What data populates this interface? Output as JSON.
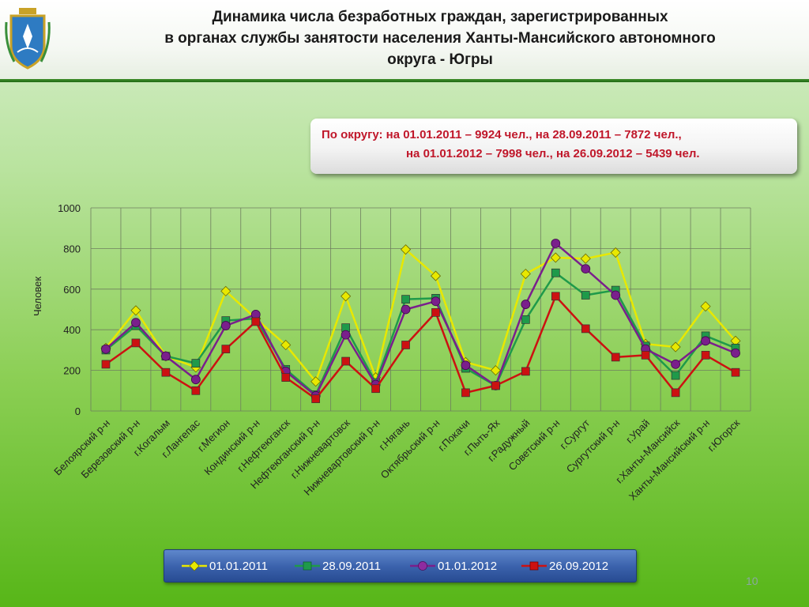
{
  "header": {
    "title_lines": [
      "Динамика числа безработных граждан, зарегистрированных",
      "в органах службы занятости населения Ханты-Мансийского автономного",
      "округа - Югры"
    ],
    "emblem_icon": "coat-of-arms-icon"
  },
  "infobox": {
    "line1": "По округу:    на 01.01.2011 – 9924 чел., на 28.09.2011 – 7872 чел.,",
    "line2": "на 01.01.2012 – 7998 чел., на 26.09.2012 – 5439 чел."
  },
  "page_number": "10",
  "chart_data": {
    "type": "line",
    "ylabel": "Человек",
    "ylim": [
      0,
      1000
    ],
    "yticks": [
      "0",
      "200",
      "400",
      "600",
      "800",
      "1000"
    ],
    "grid": true,
    "legend_position": "bottom",
    "categories": [
      "Белоярский р-н",
      "Березовский р-н",
      "г.Когалым",
      "г.Лангепас",
      "г.Мегион",
      "Кондинский р-н",
      "г.Нефтеюганск",
      "Нефтеюганский р-н",
      "г.Нижневартовск",
      "Нижневартовский р-н",
      "г.Нягань",
      "Октябрьский р-н",
      "г.Покачи",
      "г.Пыть-Ях",
      "г.Радужный",
      "Советский р-н",
      "г.Сургут",
      "Сургутский р-н",
      "г.Урай",
      "г.Ханты-Мансийск",
      "Ханты-Мансийский р-н",
      "г.Югорск"
    ],
    "series": [
      {
        "name": "01.01.2011",
        "color": "#e8e800",
        "marker": "diamond",
        "values": [
          310,
          495,
          270,
          215,
          590,
          455,
          325,
          145,
          565,
          165,
          795,
          665,
          240,
          200,
          675,
          755,
          750,
          780,
          330,
          315,
          515,
          345
        ]
      },
      {
        "name": "28.09.2011",
        "color": "#1f9a4a",
        "marker": "square",
        "values": [
          300,
          420,
          270,
          235,
          445,
          455,
          205,
          80,
          410,
          140,
          550,
          555,
          210,
          125,
          450,
          680,
          570,
          595,
          320,
          175,
          370,
          310
        ]
      },
      {
        "name": "01.01.2012",
        "color": "#7a1f8c",
        "marker": "circle",
        "values": [
          305,
          435,
          270,
          155,
          420,
          475,
          195,
          75,
          375,
          130,
          500,
          540,
          225,
          125,
          525,
          825,
          700,
          570,
          305,
          230,
          345,
          285
        ]
      },
      {
        "name": "26.09.2012",
        "color": "#cc1111",
        "marker": "square",
        "values": [
          230,
          335,
          190,
          100,
          305,
          440,
          165,
          60,
          245,
          110,
          325,
          485,
          90,
          125,
          195,
          565,
          405,
          265,
          275,
          90,
          275,
          190
        ]
      }
    ]
  }
}
